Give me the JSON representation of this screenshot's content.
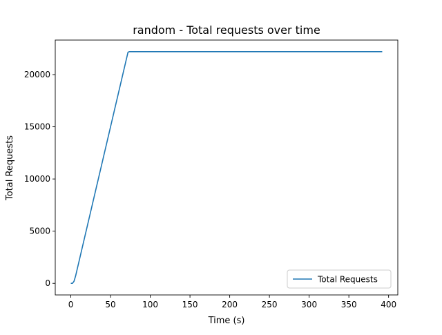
{
  "chart_data": {
    "type": "line",
    "title": "random - Total requests over time",
    "xlabel": "Time (s)",
    "ylabel": "Total Requests",
    "xlim": [
      -19.6,
      411.6
    ],
    "ylim": [
      -1110,
      23310
    ],
    "xticks": [
      0,
      50,
      100,
      150,
      200,
      250,
      300,
      350,
      400
    ],
    "yticks": [
      0,
      5000,
      10000,
      15000,
      20000
    ],
    "grid": false,
    "legend_position": "lower right",
    "series": [
      {
        "name": "Total Requests",
        "color": "#1f77b4",
        "x": [
          0,
          2,
          4,
          6,
          8,
          10,
          12,
          14,
          16,
          18,
          20,
          22,
          24,
          26,
          28,
          30,
          32,
          34,
          36,
          38,
          40,
          42,
          44,
          46,
          48,
          50,
          52,
          54,
          56,
          58,
          60,
          62,
          64,
          66,
          68,
          70,
          72,
          74,
          80,
          100,
          150,
          200,
          250,
          300,
          350,
          392
        ],
        "y": [
          0,
          0,
          200,
          700,
          1350,
          2000,
          2650,
          3300,
          3950,
          4600,
          5250,
          5900,
          6550,
          7200,
          7850,
          8500,
          9150,
          9800,
          10450,
          11100,
          11750,
          12400,
          13050,
          13700,
          14350,
          15000,
          15650,
          16300,
          16950,
          17600,
          18250,
          18900,
          19550,
          20200,
          20850,
          21500,
          22150,
          22200,
          22200,
          22200,
          22200,
          22200,
          22200,
          22200,
          22200,
          22200
        ]
      }
    ]
  }
}
